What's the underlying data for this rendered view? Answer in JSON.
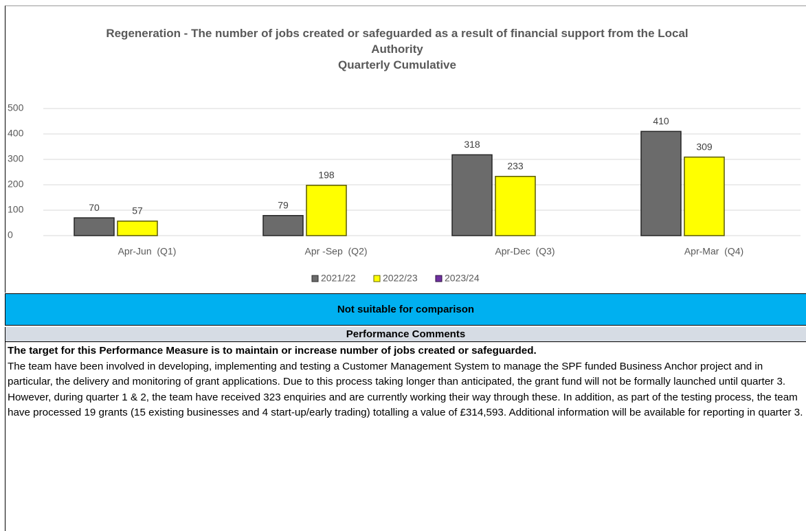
{
  "chart_data": {
    "type": "bar",
    "title": "Regeneration - The number of jobs created or safeguarded as a result of financial support from the Local Authority",
    "subtitle": "Quarterly Cumulative",
    "categories": [
      "Apr-Jun  (Q1)",
      "Apr -Sep  (Q2)",
      "Apr-Dec  (Q3)",
      "Apr-Mar  (Q4)"
    ],
    "series": [
      {
        "name": "2021/22",
        "color": "#6b6b6b",
        "values": [
          70,
          79,
          318,
          410
        ]
      },
      {
        "name": "2022/23",
        "color": "#ffff00",
        "values": [
          57,
          198,
          233,
          309
        ]
      },
      {
        "name": "2023/24",
        "color": "#7030a0",
        "values": [
          null,
          null,
          null,
          null
        ]
      }
    ],
    "ylim": [
      0,
      500
    ],
    "yticks": [
      0,
      100,
      200,
      300,
      400,
      500
    ],
    "grid": true,
    "legend": "bottom"
  },
  "status": "Not suitable for comparison",
  "comments": {
    "heading": "Performance Comments",
    "lead": "The target for this Performance Measure is to maintain or increase number of jobs created or safeguarded.",
    "body": "The team have been involved in developing, implementing and testing a Customer Management System to manage the SPF funded Business Anchor project and in particular, the delivery and monitoring of grant applications. Due to this process taking longer than anticipated, the grant fund will not be formally launched until quarter 3. However, during quarter 1 & 2, the team have received 323 enquiries and are currently working their way through these. In addition, as part of the testing process, the team have processed 19 grants (15 existing businesses and 4 start-up/early trading) totalling a value of £314,593. Additional information will be available for reporting in quarter 3."
  }
}
